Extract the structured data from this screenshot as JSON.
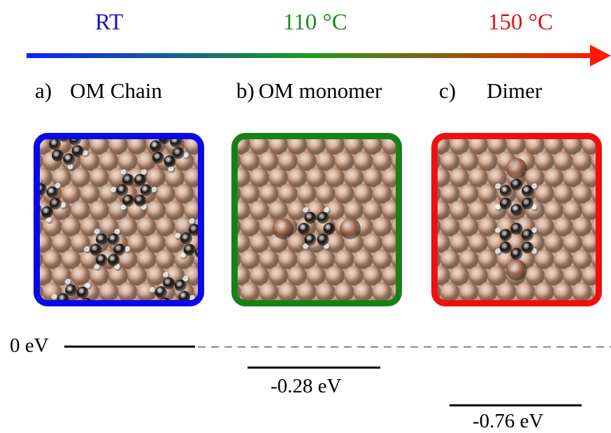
{
  "temperatures": [
    {
      "label": "RT",
      "color": "#1515c8"
    },
    {
      "label": "110 °C",
      "color": "#1f8a1f"
    },
    {
      "label": "150 °C",
      "color": "#d61515"
    }
  ],
  "arrow_gradient": [
    "#0a22ff",
    "#1f9a1f",
    "#ff1a00"
  ],
  "panels": [
    {
      "letter": "a)",
      "title": "OM Chain",
      "border_color": "#0808e8"
    },
    {
      "letter": "b)",
      "title": "OM monomer",
      "border_color": "#168216"
    },
    {
      "letter": "c)",
      "title": "Dimer",
      "border_color": "#ee0f0f"
    }
  ],
  "energy": {
    "zero_label": "0 eV",
    "level_b": "-0.28 eV",
    "level_c": "-0.76 eV"
  },
  "colors": {
    "copper_atom": "#c99a82",
    "adatom": "#a86d55",
    "carbon": "#151515",
    "hydrogen": "#f0f0f0"
  }
}
